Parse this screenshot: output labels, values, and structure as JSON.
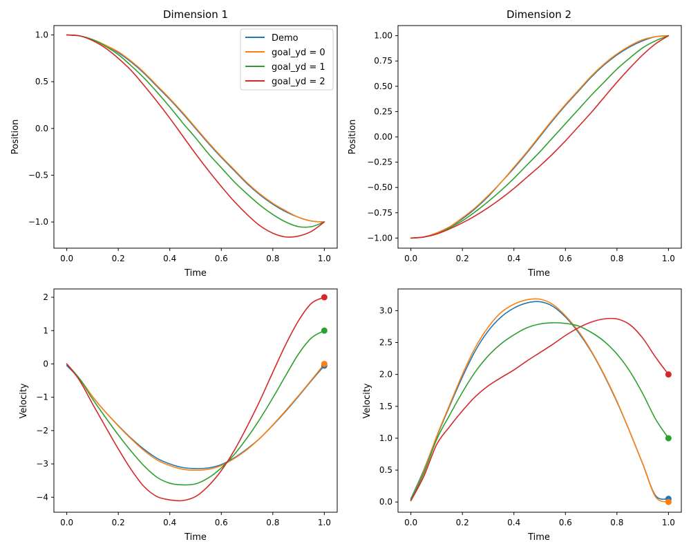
{
  "figure": {
    "background": "#ffffff"
  },
  "colors": {
    "Demo": "#1f77b4",
    "goal_yd = 0": "#ff7f0e",
    "goal_yd = 1": "#2ca02c",
    "goal_yd = 2": "#d62728"
  },
  "legend_labels": [
    "Demo",
    "goal_yd = 0",
    "goal_yd = 1",
    "goal_yd = 2"
  ],
  "chart_data": [
    {
      "type": "line",
      "title": "Dimension 1",
      "xlabel": "Time",
      "ylabel": "Position",
      "xlim": [
        -0.05,
        1.05
      ],
      "ylim": [
        -1.28,
        1.1
      ],
      "xticks": [
        0.0,
        0.2,
        0.4,
        0.6,
        0.8,
        1.0
      ],
      "xtick_labels": [
        "0.0",
        "0.2",
        "0.4",
        "0.6",
        "0.8",
        "1.0"
      ],
      "yticks": [
        -1.0,
        -0.5,
        0.0,
        0.5,
        1.0
      ],
      "ytick_labels": [
        "−1.0",
        "−0.5",
        "0.0",
        "0.5",
        "1.0"
      ],
      "legend": "top-right",
      "x": [
        0.0,
        0.05,
        0.1,
        0.15,
        0.2,
        0.25,
        0.3,
        0.35,
        0.4,
        0.45,
        0.5,
        0.55,
        0.6,
        0.65,
        0.7,
        0.75,
        0.8,
        0.85,
        0.9,
        0.95,
        1.0
      ],
      "series": [
        {
          "name": "Demo",
          "values": [
            1.0,
            0.99,
            0.95,
            0.89,
            0.81,
            0.71,
            0.59,
            0.45,
            0.31,
            0.16,
            0.0,
            -0.16,
            -0.31,
            -0.45,
            -0.59,
            -0.71,
            -0.81,
            -0.89,
            -0.95,
            -0.99,
            -1.0
          ]
        },
        {
          "name": "goal_yd = 0",
          "values": [
            1.0,
            0.99,
            0.95,
            0.89,
            0.82,
            0.72,
            0.6,
            0.46,
            0.32,
            0.17,
            0.01,
            -0.15,
            -0.3,
            -0.44,
            -0.58,
            -0.7,
            -0.8,
            -0.88,
            -0.95,
            -0.99,
            -1.0
          ]
        },
        {
          "name": "goal_yd = 1",
          "values": [
            1.0,
            0.99,
            0.95,
            0.88,
            0.79,
            0.67,
            0.54,
            0.39,
            0.23,
            0.06,
            -0.1,
            -0.27,
            -0.42,
            -0.57,
            -0.7,
            -0.82,
            -0.92,
            -1.0,
            -1.05,
            -1.05,
            -1.0
          ]
        },
        {
          "name": "goal_yd = 2",
          "values": [
            1.0,
            0.99,
            0.94,
            0.86,
            0.75,
            0.62,
            0.46,
            0.29,
            0.11,
            -0.08,
            -0.27,
            -0.45,
            -0.62,
            -0.78,
            -0.92,
            -1.04,
            -1.12,
            -1.16,
            -1.15,
            -1.1,
            -1.0
          ]
        }
      ]
    },
    {
      "type": "line",
      "title": "Dimension 2",
      "xlabel": "Time",
      "ylabel": "Position",
      "xlim": [
        -0.05,
        1.05
      ],
      "ylim": [
        -1.1,
        1.1
      ],
      "xticks": [
        0.0,
        0.2,
        0.4,
        0.6,
        0.8,
        1.0
      ],
      "xtick_labels": [
        "0.0",
        "0.2",
        "0.4",
        "0.6",
        "0.8",
        "1.0"
      ],
      "yticks": [
        -1.0,
        -0.75,
        -0.5,
        -0.25,
        0.0,
        0.25,
        0.5,
        0.75,
        1.0
      ],
      "ytick_labels": [
        "−1.00",
        "−0.75",
        "−0.50",
        "−0.25",
        "0.00",
        "0.25",
        "0.50",
        "0.75",
        "1.00"
      ],
      "x": [
        0.0,
        0.05,
        0.1,
        0.15,
        0.2,
        0.25,
        0.3,
        0.35,
        0.4,
        0.45,
        0.5,
        0.55,
        0.6,
        0.65,
        0.7,
        0.75,
        0.8,
        0.85,
        0.9,
        0.95,
        1.0
      ],
      "series": [
        {
          "name": "Demo",
          "values": [
            -1.0,
            -0.99,
            -0.95,
            -0.89,
            -0.81,
            -0.71,
            -0.59,
            -0.45,
            -0.31,
            -0.16,
            0.0,
            0.16,
            0.31,
            0.45,
            0.59,
            0.71,
            0.81,
            0.89,
            0.95,
            0.99,
            1.0
          ]
        },
        {
          "name": "goal_yd = 0",
          "values": [
            -1.0,
            -0.99,
            -0.95,
            -0.89,
            -0.8,
            -0.7,
            -0.58,
            -0.45,
            -0.3,
            -0.15,
            0.01,
            0.17,
            0.32,
            0.46,
            0.6,
            0.72,
            0.82,
            0.9,
            0.96,
            0.99,
            1.0
          ]
        },
        {
          "name": "goal_yd = 1",
          "values": [
            -1.0,
            -0.99,
            -0.96,
            -0.9,
            -0.83,
            -0.74,
            -0.64,
            -0.53,
            -0.41,
            -0.28,
            -0.15,
            -0.01,
            0.13,
            0.27,
            0.41,
            0.54,
            0.67,
            0.78,
            0.88,
            0.95,
            1.0
          ]
        },
        {
          "name": "goal_yd = 2",
          "values": [
            -1.0,
            -0.99,
            -0.96,
            -0.91,
            -0.85,
            -0.78,
            -0.7,
            -0.61,
            -0.51,
            -0.4,
            -0.29,
            -0.17,
            -0.04,
            0.1,
            0.24,
            0.39,
            0.54,
            0.68,
            0.81,
            0.92,
            1.0
          ]
        }
      ]
    },
    {
      "type": "line",
      "title": "",
      "xlabel": "Time",
      "ylabel": "Velocity",
      "xlim": [
        -0.05,
        1.05
      ],
      "ylim": [
        -4.45,
        2.25
      ],
      "xticks": [
        0.0,
        0.2,
        0.4,
        0.6,
        0.8,
        1.0
      ],
      "xtick_labels": [
        "0.0",
        "0.2",
        "0.4",
        "0.6",
        "0.8",
        "1.0"
      ],
      "yticks": [
        -4,
        -3,
        -2,
        -1,
        0,
        1,
        2
      ],
      "ytick_labels": [
        "−4",
        "−3",
        "−2",
        "−1",
        "0",
        "1",
        "2"
      ],
      "x": [
        0.0,
        0.05,
        0.1,
        0.15,
        0.2,
        0.25,
        0.3,
        0.35,
        0.4,
        0.45,
        0.5,
        0.55,
        0.6,
        0.65,
        0.7,
        0.75,
        0.8,
        0.85,
        0.9,
        0.95,
        1.0
      ],
      "series": [
        {
          "name": "Demo",
          "values": [
            -0.05,
            -0.45,
            -0.98,
            -1.44,
            -1.85,
            -2.23,
            -2.56,
            -2.83,
            -3.0,
            -3.11,
            -3.14,
            -3.12,
            -3.02,
            -2.82,
            -2.55,
            -2.23,
            -1.84,
            -1.42,
            -0.97,
            -0.5,
            -0.05
          ]
        },
        {
          "name": "goal_yd = 0",
          "values": [
            0.0,
            -0.45,
            -0.98,
            -1.44,
            -1.86,
            -2.25,
            -2.6,
            -2.88,
            -3.05,
            -3.16,
            -3.19,
            -3.16,
            -3.05,
            -2.84,
            -2.57,
            -2.23,
            -1.83,
            -1.4,
            -0.95,
            -0.48,
            0.0
          ]
        },
        {
          "name": "goal_yd = 1",
          "values": [
            0.0,
            -0.45,
            -1.05,
            -1.6,
            -2.13,
            -2.62,
            -3.06,
            -3.4,
            -3.58,
            -3.63,
            -3.6,
            -3.42,
            -3.12,
            -2.72,
            -2.22,
            -1.65,
            -1.02,
            -0.35,
            0.3,
            0.78,
            1.0
          ]
        },
        {
          "name": "goal_yd = 2",
          "values": [
            0.0,
            -0.5,
            -1.2,
            -1.88,
            -2.55,
            -3.17,
            -3.68,
            -3.98,
            -4.08,
            -4.1,
            -3.98,
            -3.66,
            -3.2,
            -2.6,
            -1.88,
            -1.1,
            -0.25,
            0.58,
            1.3,
            1.82,
            2.0
          ]
        }
      ]
    },
    {
      "type": "line",
      "title": "",
      "xlabel": "Time",
      "ylabel": "Velocity",
      "xlim": [
        -0.05,
        1.05
      ],
      "ylim": [
        -0.16,
        3.34
      ],
      "xticks": [
        0.0,
        0.2,
        0.4,
        0.6,
        0.8,
        1.0
      ],
      "xtick_labels": [
        "0.0",
        "0.2",
        "0.4",
        "0.6",
        "0.8",
        "1.0"
      ],
      "yticks": [
        0.0,
        0.5,
        1.0,
        1.5,
        2.0,
        2.5,
        3.0
      ],
      "ytick_labels": [
        "0.0",
        "0.5",
        "1.0",
        "1.5",
        "2.0",
        "2.5",
        "3.0"
      ],
      "x": [
        0.0,
        0.05,
        0.1,
        0.15,
        0.2,
        0.25,
        0.3,
        0.35,
        0.4,
        0.45,
        0.5,
        0.55,
        0.6,
        0.65,
        0.7,
        0.75,
        0.8,
        0.85,
        0.9,
        0.95,
        1.0
      ],
      "series": [
        {
          "name": "Demo",
          "values": [
            0.05,
            0.5,
            1.02,
            1.5,
            1.96,
            2.37,
            2.68,
            2.9,
            3.04,
            3.12,
            3.14,
            3.07,
            2.9,
            2.66,
            2.36,
            1.99,
            1.57,
            1.1,
            0.6,
            0.1,
            0.05
          ]
        },
        {
          "name": "goal_yd = 0",
          "values": [
            0.03,
            0.48,
            1.03,
            1.52,
            2.0,
            2.42,
            2.74,
            2.97,
            3.1,
            3.17,
            3.18,
            3.1,
            2.92,
            2.68,
            2.37,
            2.0,
            1.58,
            1.1,
            0.6,
            0.08,
            0.0
          ]
        },
        {
          "name": "goal_yd = 1",
          "values": [
            0.03,
            0.45,
            0.98,
            1.36,
            1.72,
            2.04,
            2.29,
            2.48,
            2.62,
            2.73,
            2.79,
            2.81,
            2.8,
            2.76,
            2.66,
            2.52,
            2.32,
            2.05,
            1.7,
            1.3,
            1.0
          ]
        },
        {
          "name": "goal_yd = 2",
          "values": [
            0.02,
            0.4,
            0.9,
            1.18,
            1.43,
            1.65,
            1.82,
            1.95,
            2.07,
            2.21,
            2.34,
            2.47,
            2.61,
            2.73,
            2.82,
            2.87,
            2.87,
            2.78,
            2.57,
            2.27,
            2.0
          ]
        }
      ],
      "endpoints": [
        {
          "name": "Demo",
          "x": 1.0,
          "y": 0.05
        },
        {
          "name": "goal_yd = 0",
          "x": 1.0,
          "y": 0.0
        },
        {
          "name": "goal_yd = 1",
          "x": 1.0,
          "y": 1.0
        },
        {
          "name": "goal_yd = 2",
          "x": 1.0,
          "y": 2.0
        }
      ]
    }
  ]
}
